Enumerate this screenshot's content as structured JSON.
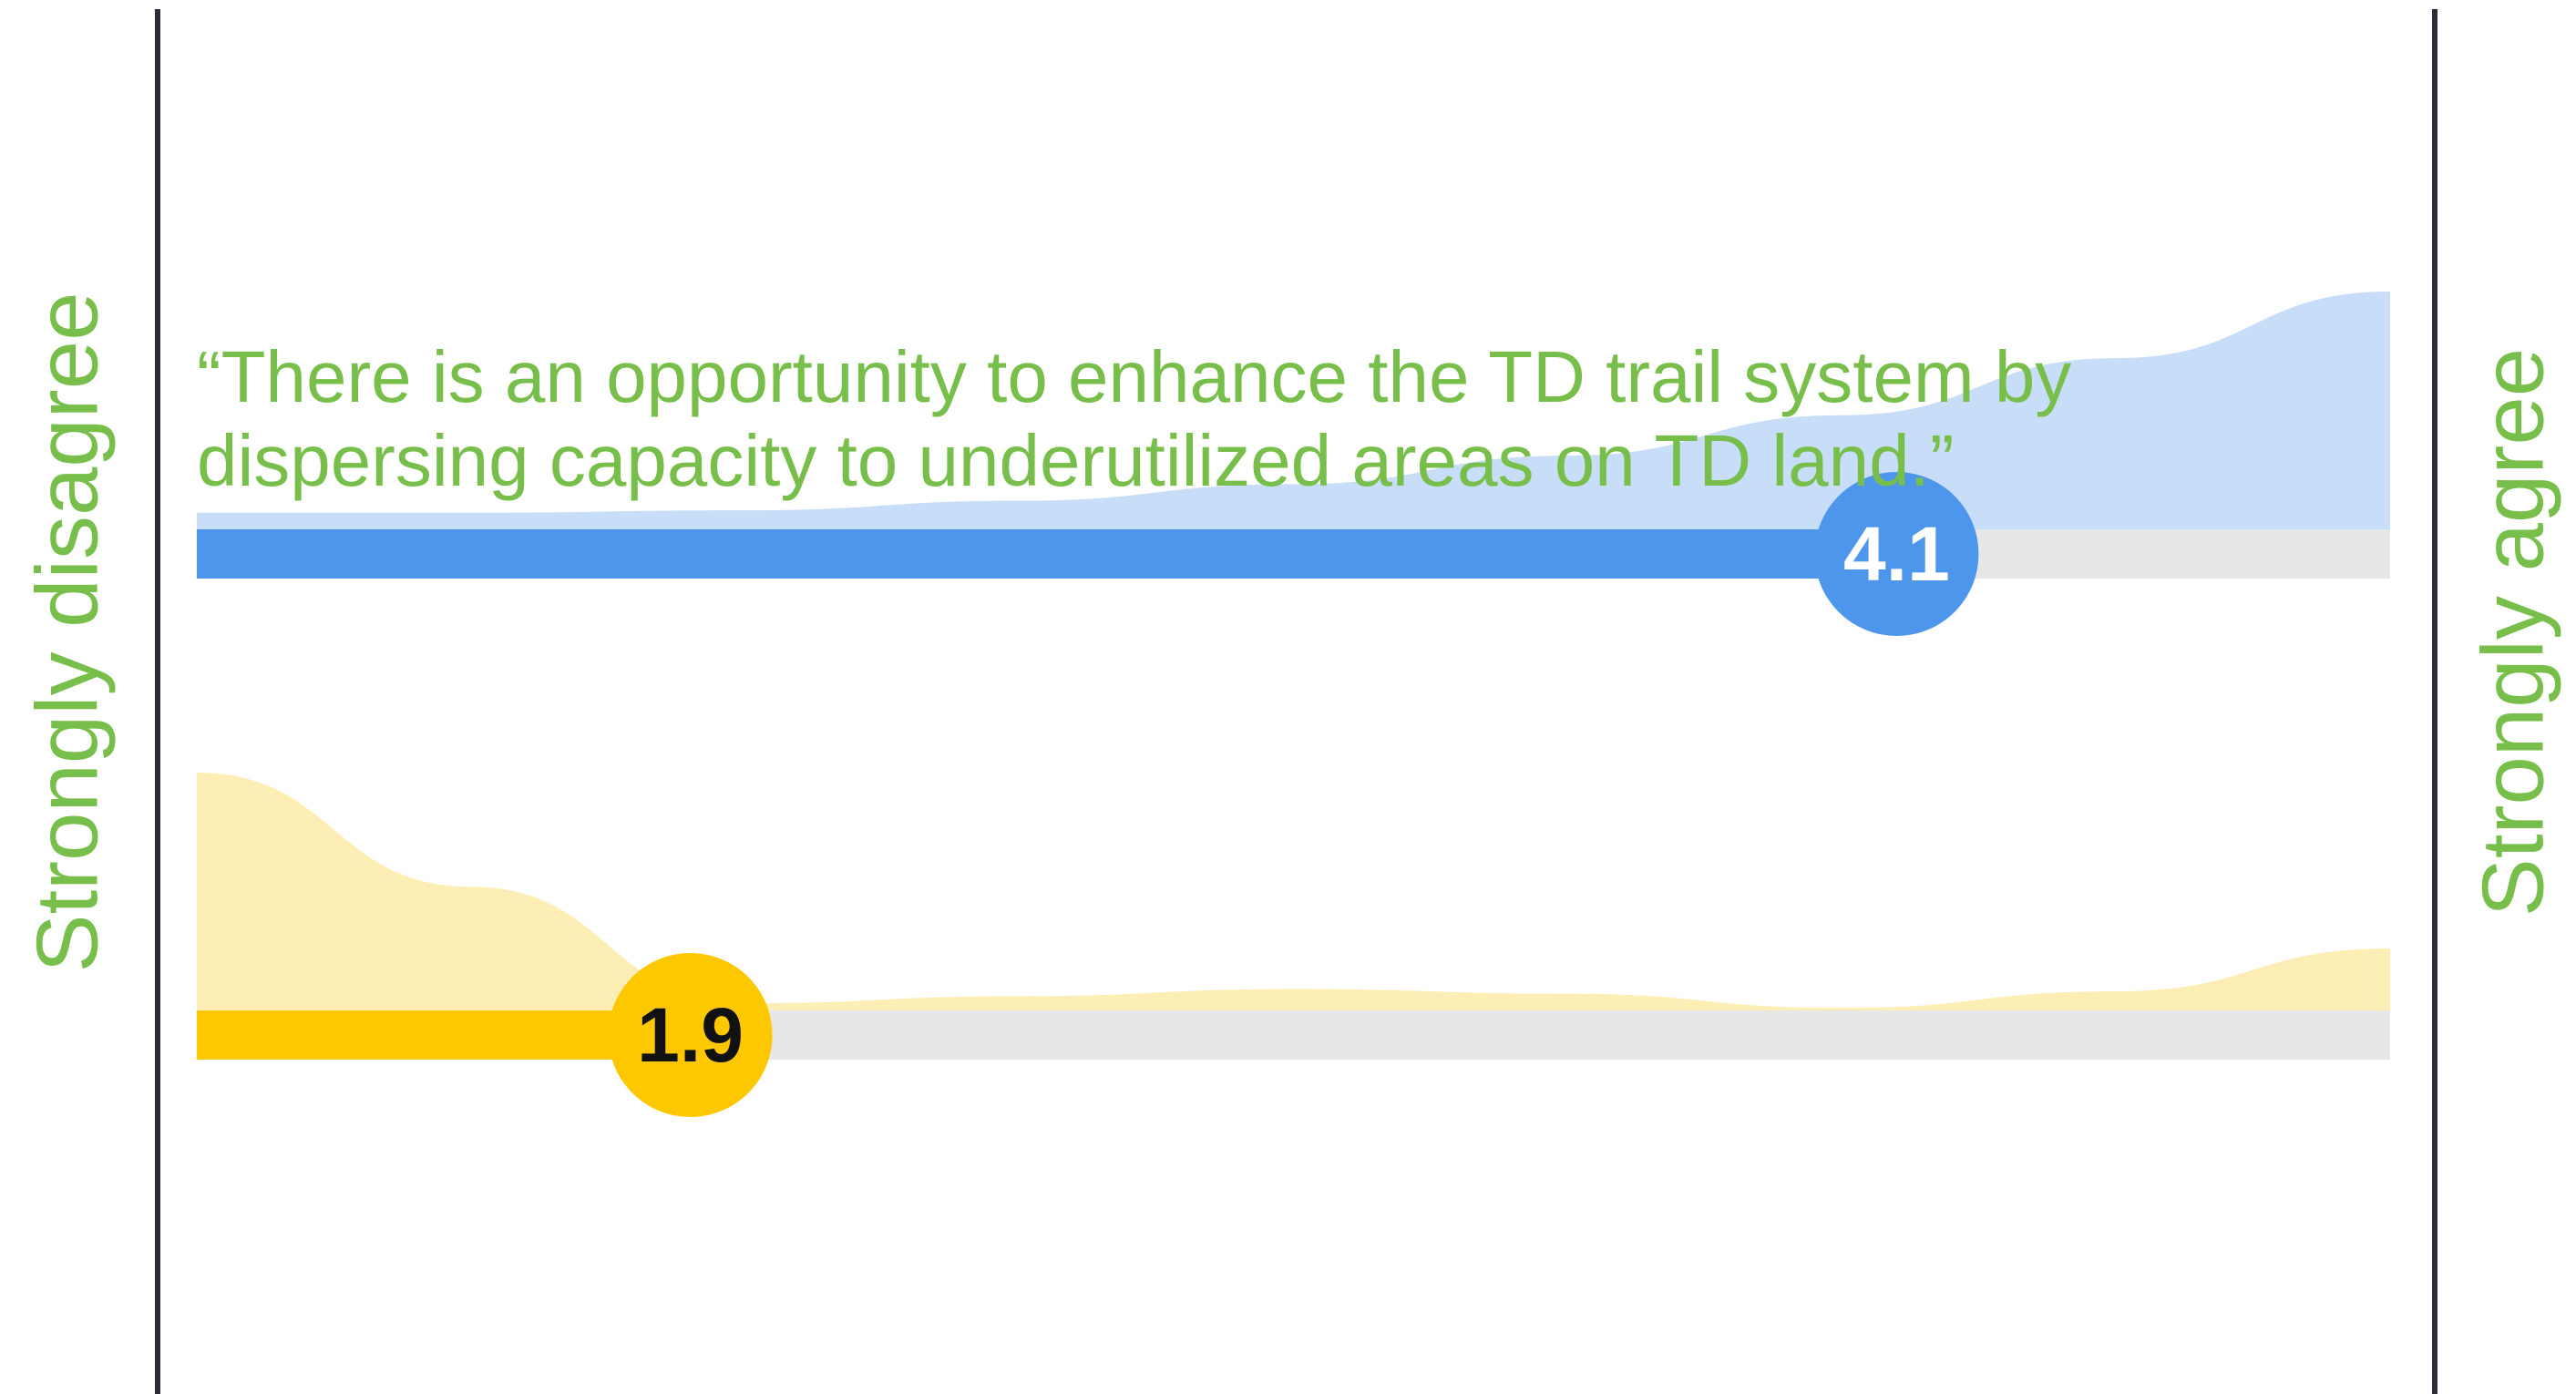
{
  "chart_data": {
    "type": "slider",
    "title": "“There is an opportunity to enhance the TD trail system by dispersing capacity to underutilized areas on TD land.”",
    "left_label": "Strongly disagree",
    "right_label": "Strongly agree",
    "xlim": [
      1,
      5
    ],
    "density_ylim": [
      0,
      100
    ],
    "track_color": "#e6e7e8",
    "series": [
      {
        "values": [
          4.1
        ],
        "color": "#4e96ec",
        "density_color": "#c8ddf8",
        "label_color": "#ffffff",
        "density": {
          "x": [
            1,
            1.5,
            2,
            2.5,
            3,
            3.5,
            4,
            4.5,
            5
          ],
          "values": [
            7,
            7,
            8,
            12,
            19,
            31,
            48,
            72,
            100
          ]
        }
      },
      {
        "values": [
          1.9
        ],
        "color": "#fdc800",
        "density_color": "#fdeeb5",
        "label_color": "#111111",
        "density": {
          "x": [
            1,
            1.5,
            2,
            2.5,
            3,
            3.5,
            4,
            4.5,
            5
          ],
          "values": [
            100,
            52,
            3,
            6,
            9,
            7,
            1,
            8,
            26
          ]
        }
      }
    ]
  }
}
